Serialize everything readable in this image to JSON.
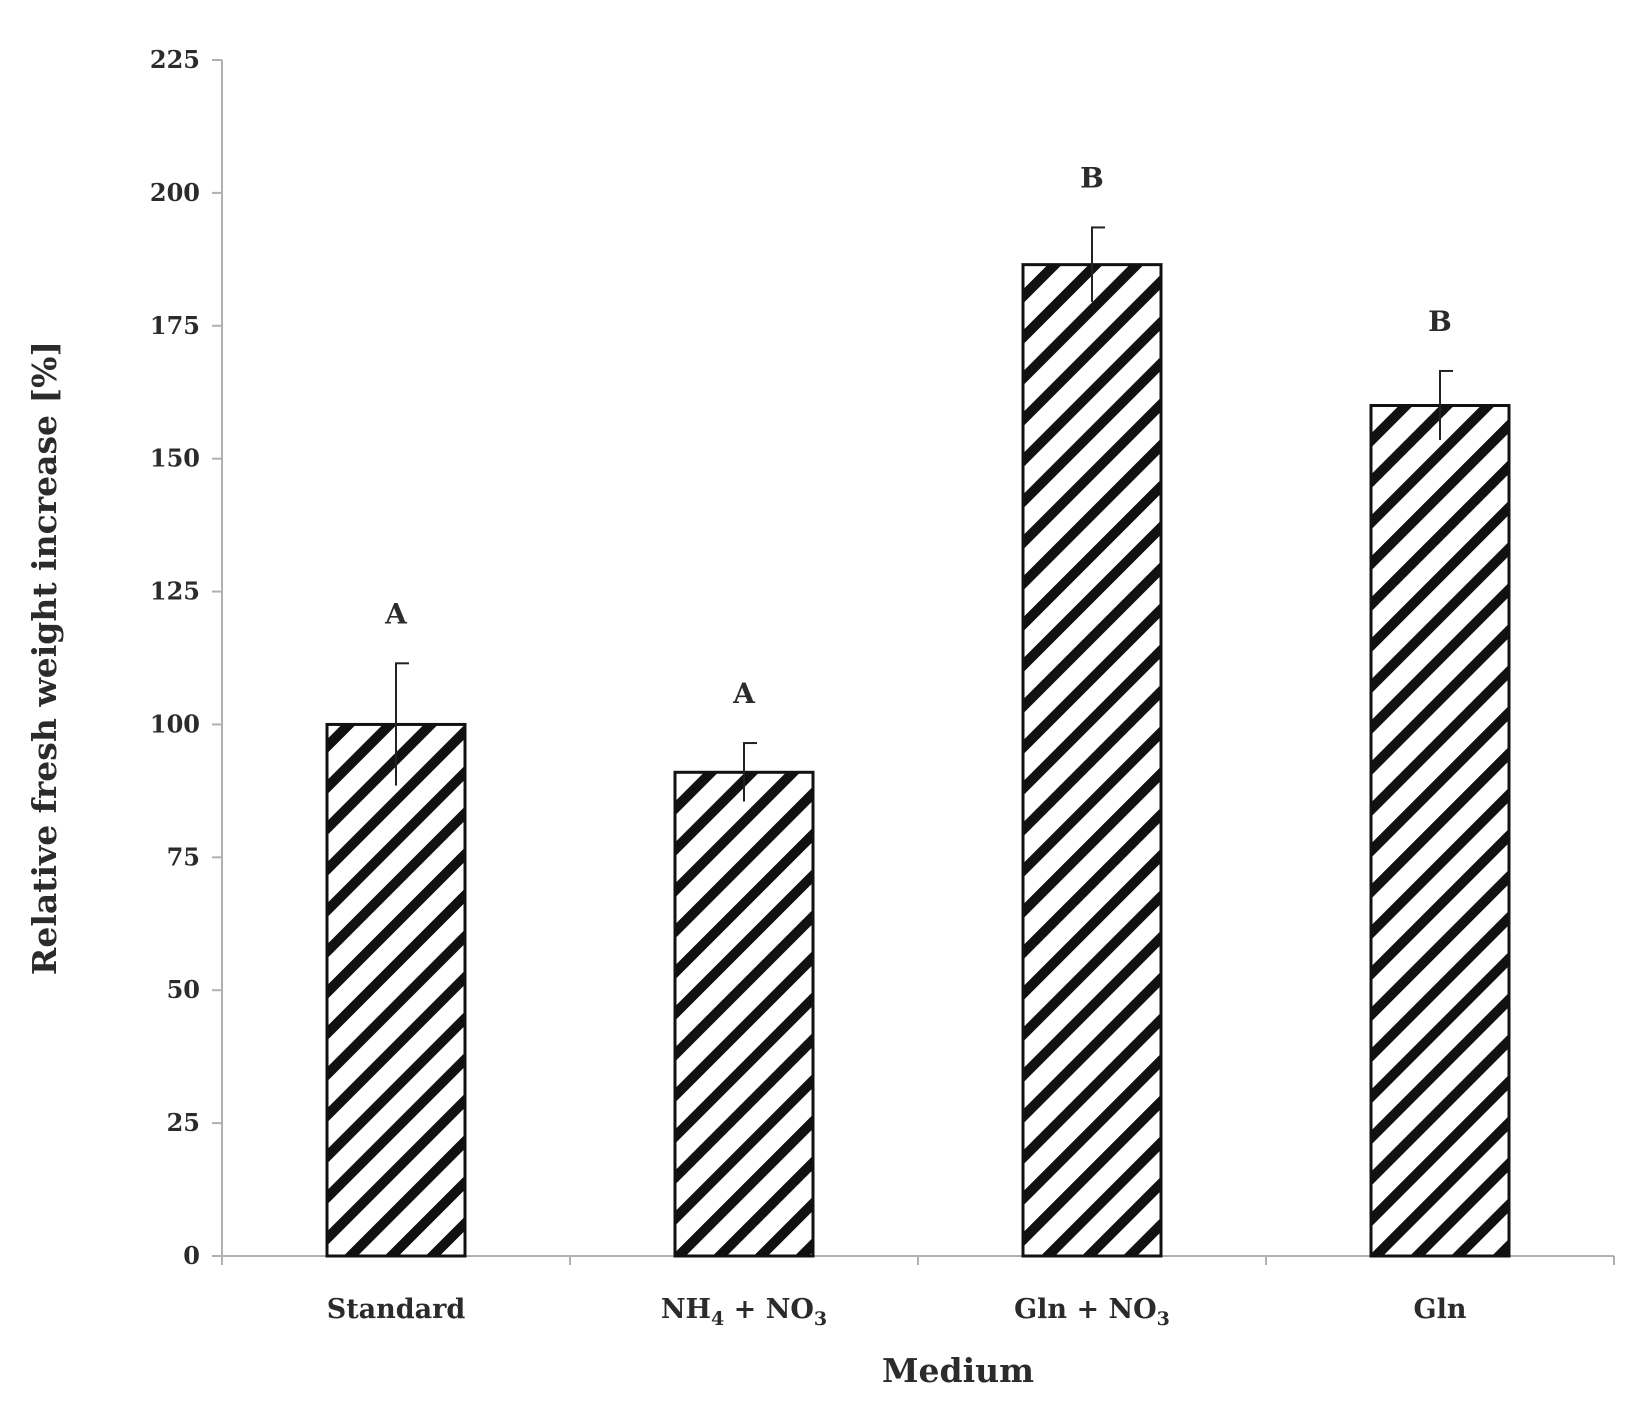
{
  "chart_data": {
    "type": "bar",
    "title": "",
    "xlabel": "Medium",
    "ylabel": "Relative fresh weight increase [%]",
    "ylim": [
      0,
      225
    ],
    "yticks": [
      0,
      25,
      50,
      75,
      100,
      125,
      150,
      175,
      200,
      225
    ],
    "grid": false,
    "legend": "none",
    "bar_pattern": "diagonal-hatch",
    "colors": {
      "stroke": "#111111",
      "fill": "#ffffff",
      "text": "#2b2b2b",
      "axis": "#b0b0b0"
    },
    "categories": [
      {
        "main": "Standard",
        "parts": [
          {
            "t": "Standard"
          }
        ]
      },
      {
        "main": "NH4 + NO3",
        "parts": [
          {
            "t": "NH"
          },
          {
            "t": "4",
            "sub": true
          },
          {
            "t": " + NO"
          },
          {
            "t": "3",
            "sub": true
          }
        ]
      },
      {
        "main": "Gln + NO3",
        "parts": [
          {
            "t": "Gln + NO"
          },
          {
            "t": "3",
            "sub": true
          }
        ]
      },
      {
        "main": "Gln",
        "parts": [
          {
            "t": "Gln"
          }
        ]
      }
    ],
    "values": [
      100,
      91,
      186.5,
      160
    ],
    "errors": [
      11.5,
      5.5,
      7,
      6.5
    ],
    "significance": [
      "A",
      "A",
      "B",
      "B"
    ]
  }
}
